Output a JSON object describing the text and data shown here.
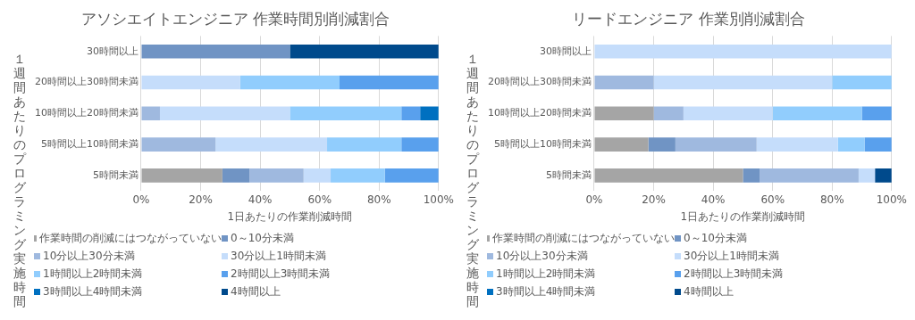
{
  "chart_data": [
    {
      "type": "bar",
      "orientation": "horizontal",
      "stacked": true,
      "title": "アソシエイトエンジニア 作業時間別削減割合",
      "xlabel": "1日あたりの作業削減時間",
      "ylabel": "１週間あたりのプログラミング実施時間",
      "categories": [
        "30時間以上",
        "20時間以上30時間未満",
        "10時間以上20時間未満",
        "5時間以上10時間未満",
        "5時間未満"
      ],
      "series": [
        {
          "name": "作業時間の削減にはつながっていない",
          "color": "#a5a5a5",
          "values": [
            null,
            null,
            null,
            null,
            27.3
          ]
        },
        {
          "name": "0～10分未満",
          "color": "#7094c4",
          "values": [
            50,
            null,
            null,
            null,
            9.1
          ]
        },
        {
          "name": "10分以上30分未満",
          "color": "#9fb9df",
          "values": [
            null,
            null,
            6.3,
            25,
            18.2
          ]
        },
        {
          "name": "30分以上1時間未満",
          "color": "#c5ddfb",
          "values": [
            null,
            33.3,
            43.7,
            37.5,
            9.1
          ]
        },
        {
          "name": "1時間以上2時間未満",
          "color": "#91cdfd",
          "values": [
            null,
            33.4,
            37.5,
            25,
            18.2
          ]
        },
        {
          "name": "2時間以上3時間未満",
          "color": "#59a0ed",
          "values": [
            null,
            33.3,
            6.3,
            12.5,
            18.1
          ]
        },
        {
          "name": "3時間以上4時間未満",
          "color": "#0070c0",
          "values": [
            null,
            null,
            6.2,
            null,
            null
          ]
        },
        {
          "name": "4時間以上",
          "color": "#004a8c",
          "values": [
            50,
            null,
            null,
            null,
            null
          ]
        }
      ],
      "xlim": [
        0,
        100
      ],
      "xticks": [
        {
          "value": 0,
          "label": "0%"
        },
        {
          "value": 20,
          "label": "20%"
        },
        {
          "value": 40,
          "label": "40%"
        },
        {
          "value": 60,
          "label": "60%"
        },
        {
          "value": 80,
          "label": "80%"
        },
        {
          "value": 100,
          "label": "100%"
        }
      ],
      "grid": "x",
      "legend": "bottom"
    },
    {
      "type": "bar",
      "orientation": "horizontal",
      "stacked": true,
      "title": "リードエンジニア 作業別削減割合",
      "xlabel": "1日あたりの作業削減時間",
      "ylabel": "１週間あたりのプログラミング実施時間",
      "categories": [
        "30時間以上",
        "20時間以上30時間未満",
        "10時間以上20時間未満",
        "5時間以上10時間未満",
        "5時間未満"
      ],
      "series": [
        {
          "name": "作業時間の削減にはつながっていない",
          "color": "#a5a5a5",
          "values": [
            null,
            null,
            20,
            18.2,
            50
          ]
        },
        {
          "name": "0～10分未満",
          "color": "#7094c4",
          "values": [
            null,
            null,
            null,
            9.1,
            5.6
          ]
        },
        {
          "name": "10分以上30分未満",
          "color": "#9fb9df",
          "values": [
            null,
            20,
            10,
            27.3,
            33.3
          ]
        },
        {
          "name": "30分以上1時間未満",
          "color": "#c5ddfb",
          "values": [
            100,
            60,
            30,
            27.3,
            5.5
          ]
        },
        {
          "name": "1時間以上2時間未満",
          "color": "#91cdfd",
          "values": [
            null,
            20,
            30,
            9.0,
            null
          ]
        },
        {
          "name": "2時間以上3時間未満",
          "color": "#59a0ed",
          "values": [
            null,
            null,
            10,
            9.1,
            null
          ]
        },
        {
          "name": "3時間以上4時間未満",
          "color": "#0070c0",
          "values": [
            null,
            null,
            null,
            null,
            null
          ]
        },
        {
          "name": "4時間以上",
          "color": "#004a8c",
          "values": [
            null,
            null,
            null,
            null,
            5.6
          ]
        }
      ],
      "xlim": [
        0,
        100
      ],
      "xticks": [
        {
          "value": 0,
          "label": "0%"
        },
        {
          "value": 20,
          "label": "20%"
        },
        {
          "value": 40,
          "label": "40%"
        },
        {
          "value": 60,
          "label": "60%"
        },
        {
          "value": 80,
          "label": "80%"
        },
        {
          "value": 100,
          "label": "100%"
        }
      ],
      "grid": "x",
      "legend": "bottom"
    }
  ]
}
